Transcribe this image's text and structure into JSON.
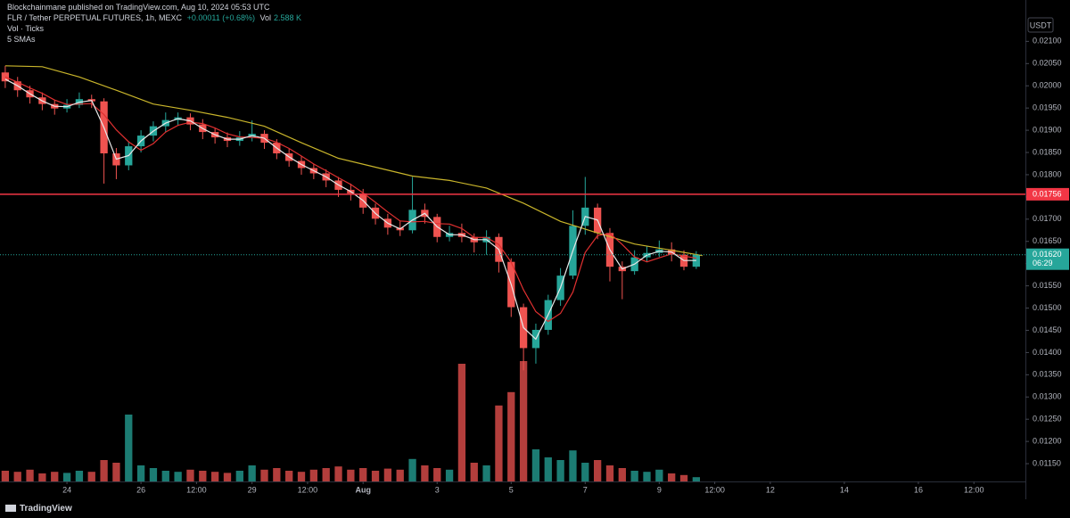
{
  "chart_data": {
    "type": "candlestick",
    "header": "Blockchainmane published on TradingView.com, Aug 10, 2024 05:53 UTC",
    "title": "FLR / Tether PERPETUAL FUTURES, 1h, MEXC",
    "change": "+0.00011 (+0.68%)",
    "vol_name": "Vol",
    "vol_value": "2.588 K",
    "indicators": [
      "Vol · Ticks",
      "5 SMAs"
    ],
    "y_axis_label": "USDT",
    "footer": "TradingView",
    "up_color": "#26a69a",
    "down_color": "#ef5350",
    "xlim": [
      -43.4,
      621.4
    ],
    "ylim": [
      0.0111,
      0.02193
    ],
    "vlim": [
      0,
      300
    ],
    "xticks": [
      {
        "value": 0,
        "label": "24"
      },
      {
        "value": 48,
        "label": "26"
      },
      {
        "value": 84,
        "label": "12:00"
      },
      {
        "value": 120,
        "label": "29"
      },
      {
        "value": 156,
        "label": "12:00"
      },
      {
        "value": 192,
        "label": "Aug"
      },
      {
        "value": 240,
        "label": "3"
      },
      {
        "value": 288,
        "label": "5"
      },
      {
        "value": 336,
        "label": "7"
      },
      {
        "value": 384,
        "label": "9"
      },
      {
        "value": 420,
        "label": "12:00"
      },
      {
        "value": 456,
        "label": "12"
      },
      {
        "value": 504,
        "label": "14"
      },
      {
        "value": 552,
        "label": "16"
      },
      {
        "value": 588,
        "label": "12:00"
      }
    ],
    "yticks": [
      {
        "value": 0.021,
        "label": "0.02100"
      },
      {
        "value": 0.0205,
        "label": "0.02050"
      },
      {
        "value": 0.02,
        "label": "0.02000"
      },
      {
        "value": 0.0195,
        "label": "0.01950"
      },
      {
        "value": 0.019,
        "label": "0.01900"
      },
      {
        "value": 0.0185,
        "label": "0.01850"
      },
      {
        "value": 0.018,
        "label": "0.01800"
      },
      {
        "value": 0.0175,
        "label": "0.01750"
      },
      {
        "value": 0.017,
        "label": "0.01700"
      },
      {
        "value": 0.0165,
        "label": "0.01650"
      },
      {
        "value": 0.016,
        "label": "0.01600"
      },
      {
        "value": 0.0155,
        "label": "0.01550"
      },
      {
        "value": 0.015,
        "label": "0.01500"
      },
      {
        "value": 0.0145,
        "label": "0.01450"
      },
      {
        "value": 0.014,
        "label": "0.01400"
      },
      {
        "value": 0.0135,
        "label": "0.01350"
      },
      {
        "value": 0.013,
        "label": "0.01300"
      },
      {
        "value": 0.0125,
        "label": "0.01250"
      },
      {
        "value": 0.012,
        "label": "0.01200"
      },
      {
        "value": 0.0115,
        "label": "0.01150"
      }
    ],
    "x": [
      -40,
      -32,
      -24,
      -16,
      -8,
      0,
      8,
      16,
      24,
      32,
      40,
      48,
      56,
      64,
      72,
      80,
      88,
      96,
      104,
      112,
      120,
      128,
      136,
      144,
      152,
      160,
      168,
      176,
      184,
      192,
      200,
      208,
      216,
      224,
      232,
      240,
      248,
      256,
      264,
      272,
      280,
      288,
      296,
      304,
      312,
      320,
      328,
      336,
      344,
      352,
      360,
      368,
      376,
      384,
      392,
      400,
      408
    ],
    "open": [
      0.0203,
      0.0201,
      0.0199,
      0.01974,
      0.01959,
      0.01949,
      0.01957,
      0.0197,
      0.01965,
      0.01848,
      0.01821,
      0.01864,
      0.01888,
      0.01909,
      0.01923,
      0.01929,
      0.01913,
      0.01896,
      0.01884,
      0.01876,
      0.01884,
      0.01892,
      0.01872,
      0.01848,
      0.01831,
      0.01815,
      0.01803,
      0.01787,
      0.01766,
      0.01758,
      0.01726,
      0.01701,
      0.01681,
      0.01675,
      0.01721,
      0.01705,
      0.0166,
      0.01669,
      0.0166,
      0.01648,
      0.0166,
      0.01604,
      0.01502,
      0.0141,
      0.01451,
      0.01518,
      0.01573,
      0.01685,
      0.01726,
      0.01669,
      0.01593,
      0.01583,
      0.01614,
      0.01624,
      0.01632,
      0.0162,
      0.01593
    ],
    "high": [
      0.02045,
      0.0202,
      0.02,
      0.01985,
      0.01968,
      0.0197,
      0.01985,
      0.0198,
      0.01972,
      0.0186,
      0.01875,
      0.019,
      0.0192,
      0.0194,
      0.0194,
      0.01938,
      0.01925,
      0.01905,
      0.01895,
      0.01898,
      0.01922,
      0.019,
      0.0188,
      0.01858,
      0.01842,
      0.01825,
      0.01812,
      0.01795,
      0.0178,
      0.01768,
      0.01735,
      0.01712,
      0.01695,
      0.01795,
      0.01735,
      0.01712,
      0.01685,
      0.0169,
      0.01668,
      0.01675,
      0.01668,
      0.01612,
      0.0151,
      0.01465,
      0.0153,
      0.0159,
      0.0172,
      0.01795,
      0.01735,
      0.0168,
      0.01605,
      0.0163,
      0.0164,
      0.01652,
      0.01648,
      0.0163,
      0.01628
    ],
    "low": [
      0.01995,
      0.01975,
      0.0196,
      0.01945,
      0.01935,
      0.0194,
      0.0195,
      0.0195,
      0.0178,
      0.0179,
      0.0181,
      0.0185,
      0.01875,
      0.01895,
      0.0191,
      0.019,
      0.0188,
      0.0187,
      0.01862,
      0.01865,
      0.01875,
      0.01858,
      0.01835,
      0.01818,
      0.018,
      0.0179,
      0.01772,
      0.0175,
      0.01742,
      0.01712,
      0.01688,
      0.01665,
      0.01662,
      0.01668,
      0.0169,
      0.01648,
      0.0165,
      0.01648,
      0.01625,
      0.0162,
      0.0158,
      0.0148,
      0.0136,
      0.01375,
      0.0144,
      0.01505,
      0.01565,
      0.01665,
      0.01655,
      0.0156,
      0.0152,
      0.01575,
      0.01605,
      0.01615,
      0.01605,
      0.01585,
      0.01588
    ],
    "close": [
      0.0201,
      0.0199,
      0.01974,
      0.01959,
      0.01949,
      0.01957,
      0.0197,
      0.01965,
      0.01848,
      0.01821,
      0.01864,
      0.01888,
      0.01909,
      0.01923,
      0.01929,
      0.01913,
      0.01896,
      0.01884,
      0.01876,
      0.01884,
      0.01892,
      0.01872,
      0.01848,
      0.01831,
      0.01815,
      0.01803,
      0.01787,
      0.01766,
      0.01758,
      0.01726,
      0.01701,
      0.01681,
      0.01675,
      0.01721,
      0.01705,
      0.0166,
      0.01669,
      0.0166,
      0.01648,
      0.0166,
      0.01604,
      0.01502,
      0.0141,
      0.01451,
      0.01518,
      0.01573,
      0.01685,
      0.01726,
      0.01669,
      0.01593,
      0.01583,
      0.01614,
      0.01624,
      0.01632,
      0.0162,
      0.01593,
      0.0162
    ],
    "volume": [
      20,
      18,
      22,
      15,
      18,
      16,
      20,
      18,
      40,
      35,
      125,
      30,
      25,
      20,
      18,
      22,
      20,
      18,
      16,
      20,
      30,
      22,
      25,
      20,
      18,
      22,
      25,
      28,
      22,
      25,
      20,
      24,
      22,
      42,
      30,
      25,
      22,
      220,
      35,
      30,
      142,
      167,
      225,
      60,
      45,
      40,
      58,
      35,
      40,
      30,
      25,
      20,
      18,
      22,
      15,
      12,
      8
    ],
    "lines": [
      {
        "color": "#c9b52b",
        "x": [
          -40,
          -16,
          8,
          32,
          56,
          80,
          104,
          128,
          152,
          176,
          200,
          224,
          248,
          272,
          296,
          320,
          344,
          368,
          392,
          412
        ],
        "values": [
          0.02045,
          0.02043,
          0.0202,
          0.0199,
          0.01959,
          0.01945,
          0.01929,
          0.01909,
          0.01872,
          0.01837,
          0.01817,
          0.01797,
          0.01787,
          0.0177,
          0.01736,
          0.01695,
          0.01669,
          0.01644,
          0.0163,
          0.01618
        ]
      },
      {
        "color": "#e03030",
        "x": [
          -40,
          -32,
          -24,
          -16,
          -8,
          0,
          8,
          16,
          24,
          32,
          40,
          48,
          56,
          64,
          72,
          80,
          88,
          96,
          104,
          112,
          120,
          128,
          136,
          144,
          152,
          160,
          168,
          176,
          184,
          192,
          200,
          208,
          216,
          224,
          232,
          240,
          248,
          256,
          264,
          272,
          280,
          288,
          296,
          304,
          312,
          320,
          328,
          336,
          344,
          352,
          360,
          368,
          376,
          384,
          392,
          400,
          408
        ],
        "values": [
          0.0202,
          0.02008,
          0.01995,
          0.01983,
          0.01968,
          0.01958,
          0.01959,
          0.0196,
          0.01935,
          0.01901,
          0.01874,
          0.01855,
          0.0187,
          0.01896,
          0.01911,
          0.01918,
          0.01915,
          0.01905,
          0.01892,
          0.01885,
          0.01884,
          0.01882,
          0.01873,
          0.01859,
          0.01842,
          0.01824,
          0.01809,
          0.01793,
          0.01778,
          0.01759,
          0.01738,
          0.01716,
          0.01696,
          0.01694,
          0.01695,
          0.0169,
          0.01689,
          0.01679,
          0.01659,
          0.01659,
          0.01643,
          0.01603,
          0.01541,
          0.01492,
          0.0147,
          0.01488,
          0.01536,
          0.01625,
          0.01663,
          0.01668,
          0.01643,
          0.01615,
          0.01604,
          0.01613,
          0.01622,
          0.01617,
          0.01612
        ]
      },
      {
        "color": "#e8e8e8",
        "x": [
          -40,
          -32,
          -24,
          -16,
          -8,
          0,
          8,
          16,
          24,
          32,
          40,
          48,
          56,
          64,
          72,
          80,
          88,
          96,
          104,
          112,
          120,
          128,
          136,
          144,
          152,
          160,
          168,
          176,
          184,
          192,
          200,
          208,
          216,
          224,
          232,
          240,
          248,
          256,
          264,
          272,
          280,
          288,
          296,
          304,
          312,
          320,
          328,
          336,
          344,
          352,
          360,
          368,
          376,
          384,
          392,
          400,
          408
        ],
        "values": [
          0.02015,
          0.02,
          0.01982,
          0.01966,
          0.01954,
          0.01953,
          0.01963,
          0.01967,
          0.01906,
          0.01835,
          0.01843,
          0.01876,
          0.01898,
          0.01916,
          0.01926,
          0.01921,
          0.01904,
          0.0189,
          0.0188,
          0.0188,
          0.01888,
          0.01882,
          0.0186,
          0.0184,
          0.01823,
          0.01809,
          0.01795,
          0.01777,
          0.01762,
          0.01742,
          0.01713,
          0.01691,
          0.01678,
          0.01698,
          0.01713,
          0.01683,
          0.01665,
          0.01665,
          0.01654,
          0.01654,
          0.01632,
          0.01553,
          0.01456,
          0.0143,
          0.01485,
          0.01546,
          0.01629,
          0.01706,
          0.01698,
          0.01631,
          0.01588,
          0.01599,
          0.01619,
          0.01628,
          0.01626,
          0.01607,
          0.01607
        ]
      }
    ],
    "hline": {
      "value": 0.01756,
      "color": "#f23645"
    },
    "last_price": {
      "value": 0.0162,
      "label": "0.01620",
      "countdown": "06:29",
      "color": "#26a69a"
    }
  }
}
